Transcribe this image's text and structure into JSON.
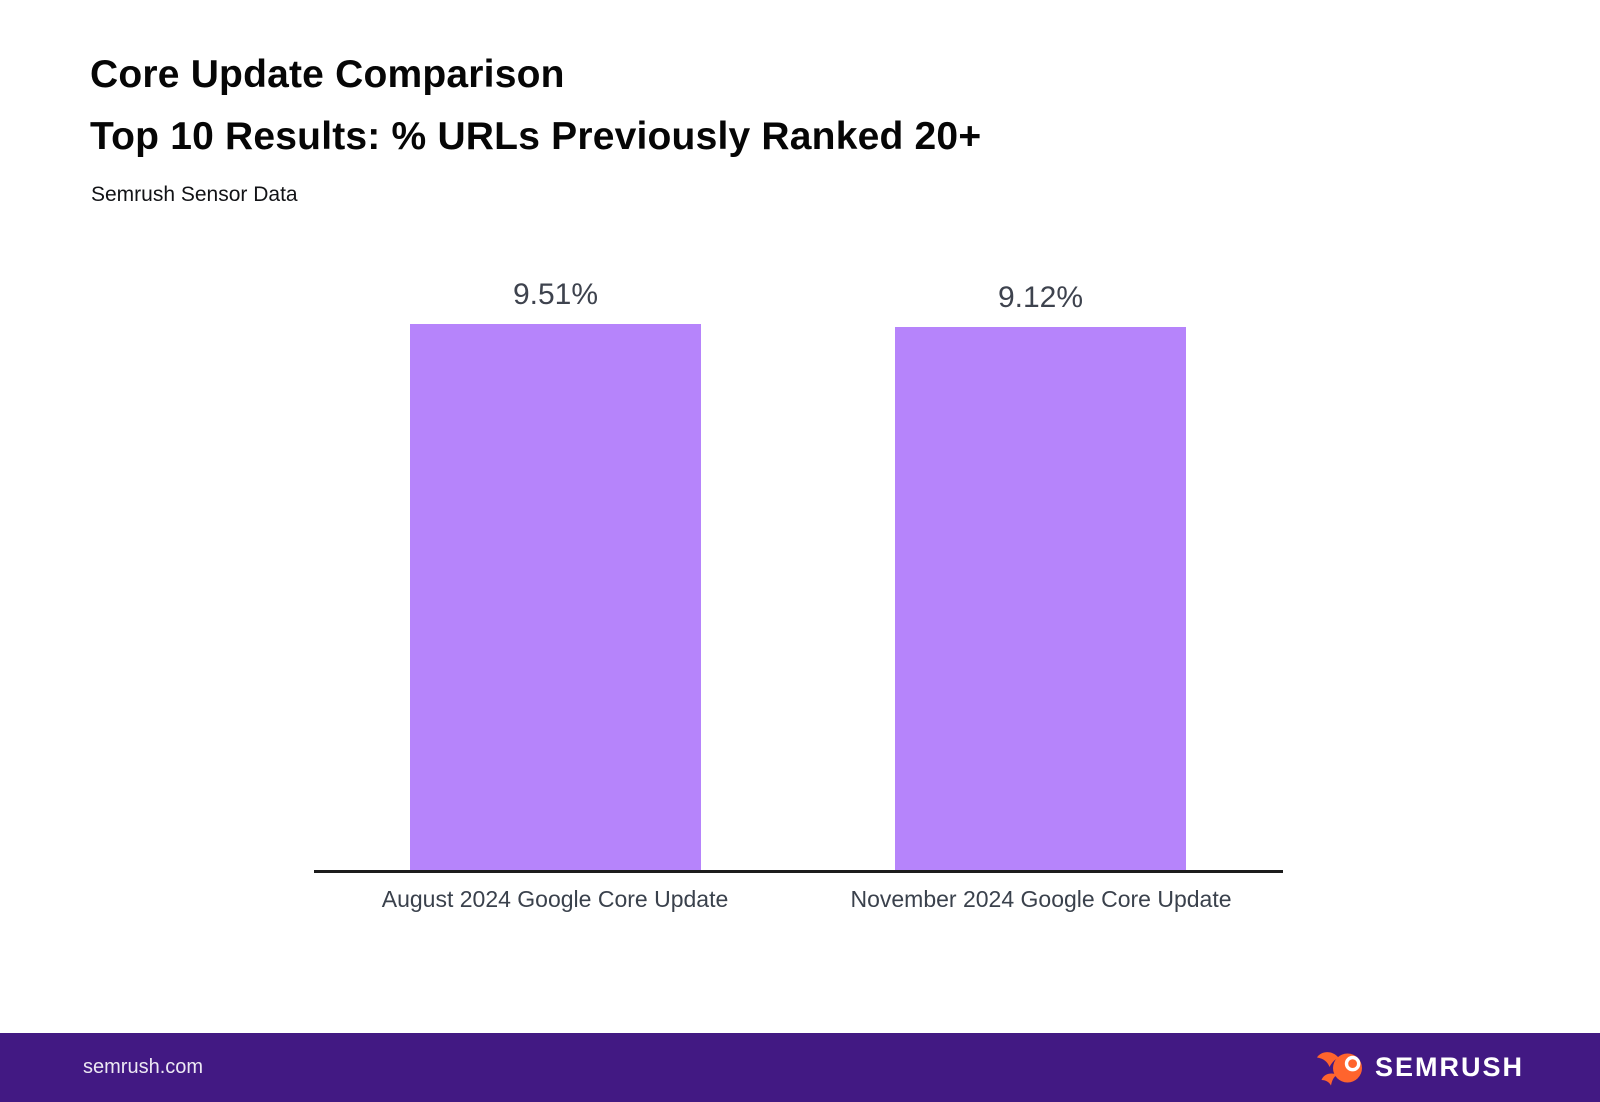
{
  "header": {
    "title_line1": "Core Update Comparison",
    "title_line2": "Top 10 Results: % URLs Previously Ranked 20+",
    "subtitle": "Semrush Sensor Data"
  },
  "chart_data": {
    "type": "bar",
    "title": "Core Update Comparison — Top 10 Results: % URLs Previously Ranked 20+",
    "subtitle": "Semrush Sensor Data",
    "categories": [
      "August 2024 Google Core Update",
      "November 2024 Google Core Update"
    ],
    "values": [
      9.51,
      9.12
    ],
    "display_values": [
      "9.51%",
      "9.12%"
    ],
    "xlabel": "",
    "ylabel": "",
    "ylim": [
      0,
      10
    ],
    "grid": false,
    "legend": false,
    "bar_color": "#b684fb",
    "value_label_color": "#3e434e",
    "axis_line_color": "#1c1c1c"
  },
  "footer": {
    "url": "semrush.com",
    "brand": "SEMRUSH",
    "background_color": "#421983",
    "logo_color": "#ff642d"
  }
}
